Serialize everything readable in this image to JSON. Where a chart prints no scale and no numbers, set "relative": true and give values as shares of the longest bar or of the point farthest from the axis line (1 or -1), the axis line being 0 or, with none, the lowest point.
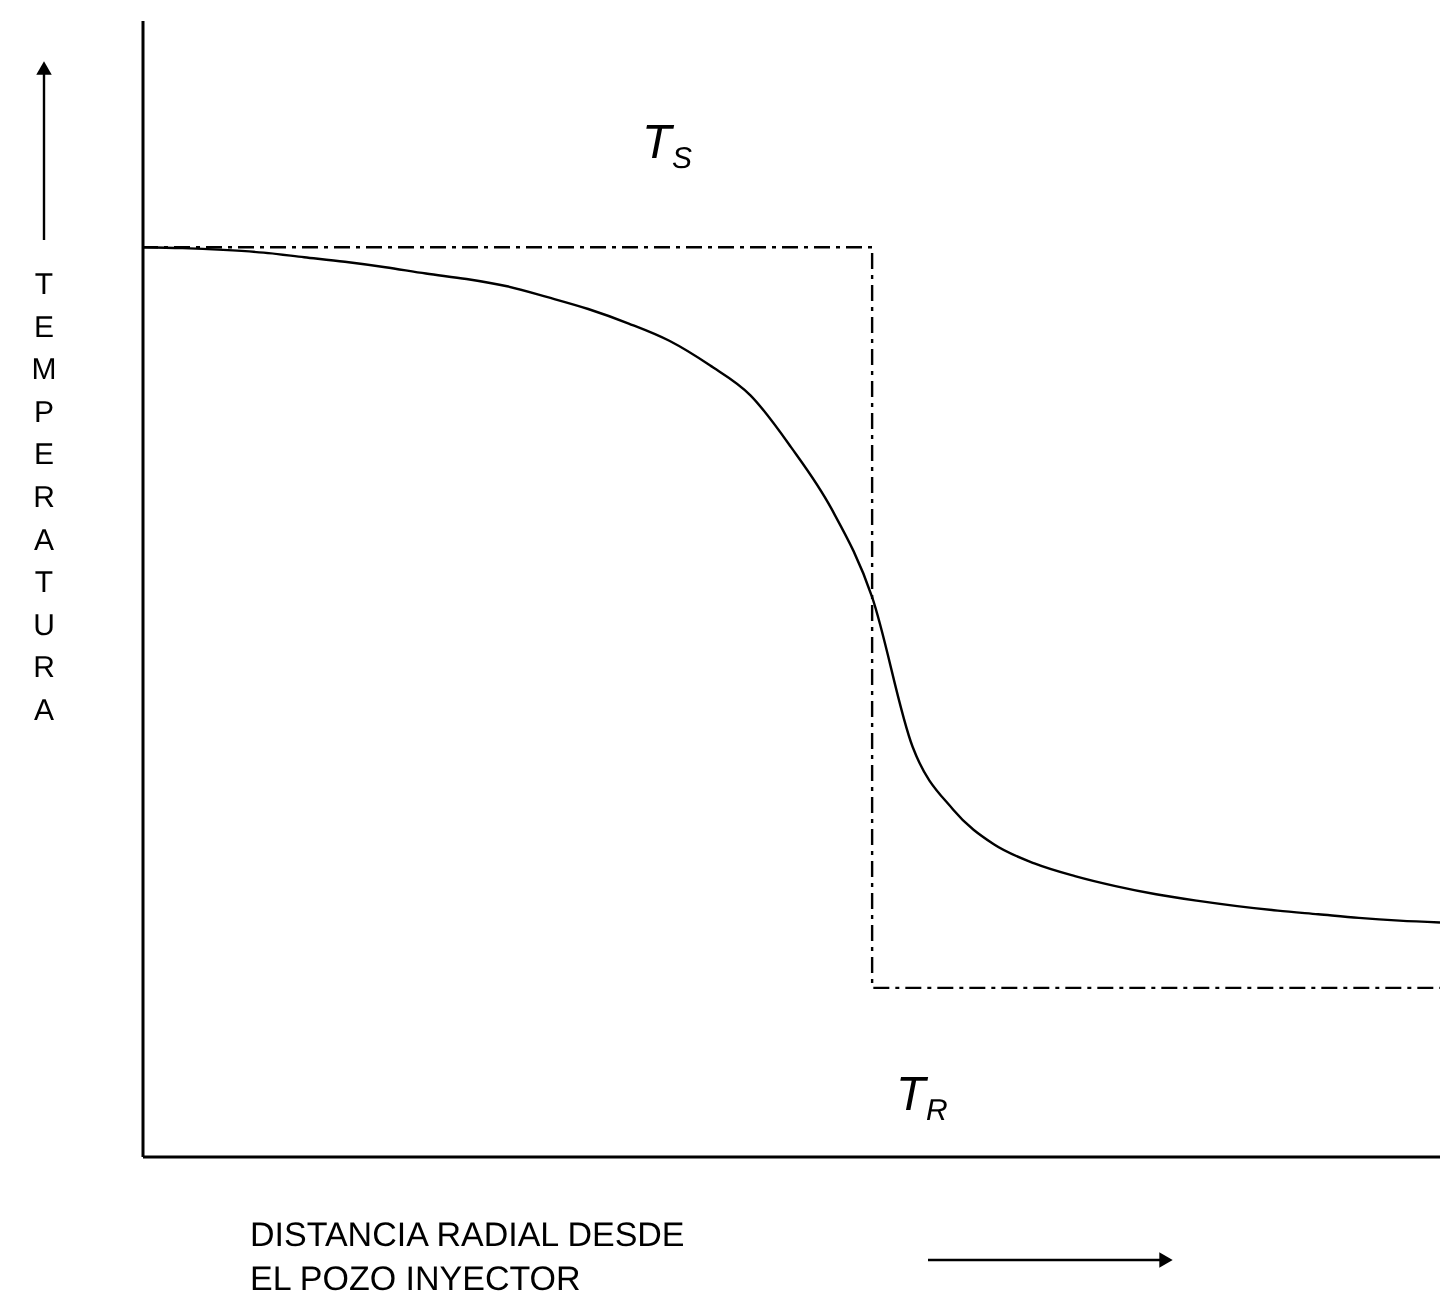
{
  "chart_data": {
    "type": "line",
    "relative": true,
    "xlabel": "DISTANCIA RADIAL DESDE\nEL POZO INYECTOR",
    "ylabel": "TEMPERATURA",
    "grid": false,
    "marker": "none",
    "categories": [
      null,
      null,
      null,
      null,
      null,
      null,
      null,
      null,
      null,
      null,
      null,
      null,
      null,
      null,
      null,
      null,
      null,
      null,
      null,
      null,
      null,
      null,
      null,
      null,
      null,
      null,
      null,
      null,
      null,
      null,
      null,
      null,
      null
    ],
    "series": [
      {
        "color": "#000000",
        "line_style": "solid",
        "values": [
          1.0,
          0.999,
          0.997,
          0.994,
          0.989,
          0.984,
          0.978,
          0.971,
          0.965,
          0.957,
          0.945,
          0.932,
          0.916,
          0.897,
          0.87,
          0.837,
          0.78,
          0.712,
          0.615,
          0.45,
          0.381,
          0.343,
          0.322,
          0.308,
          0.297,
          0.288,
          0.281,
          0.275,
          0.27,
          0.266,
          0.262,
          0.259,
          0.257
        ]
      },
      {
        "type": "step",
        "color": "#000000",
        "line_style": "dashed",
        "values": [
          1.0,
          1.0,
          1.0,
          1.0,
          1.0,
          1.0,
          1.0,
          1.0,
          1.0,
          1.0,
          1.0,
          1.0,
          1.0,
          1.0,
          1.0,
          1.0,
          1.0,
          1.0,
          0.185,
          0.185,
          0.185,
          0.185,
          0.185,
          0.185,
          0.185,
          0.185,
          0.185,
          0.185,
          0.185,
          0.185,
          0.185,
          0.185,
          0.185
        ]
      }
    ],
    "annotations": [
      "T$_{S}$",
      "T$_{R}$"
    ]
  }
}
